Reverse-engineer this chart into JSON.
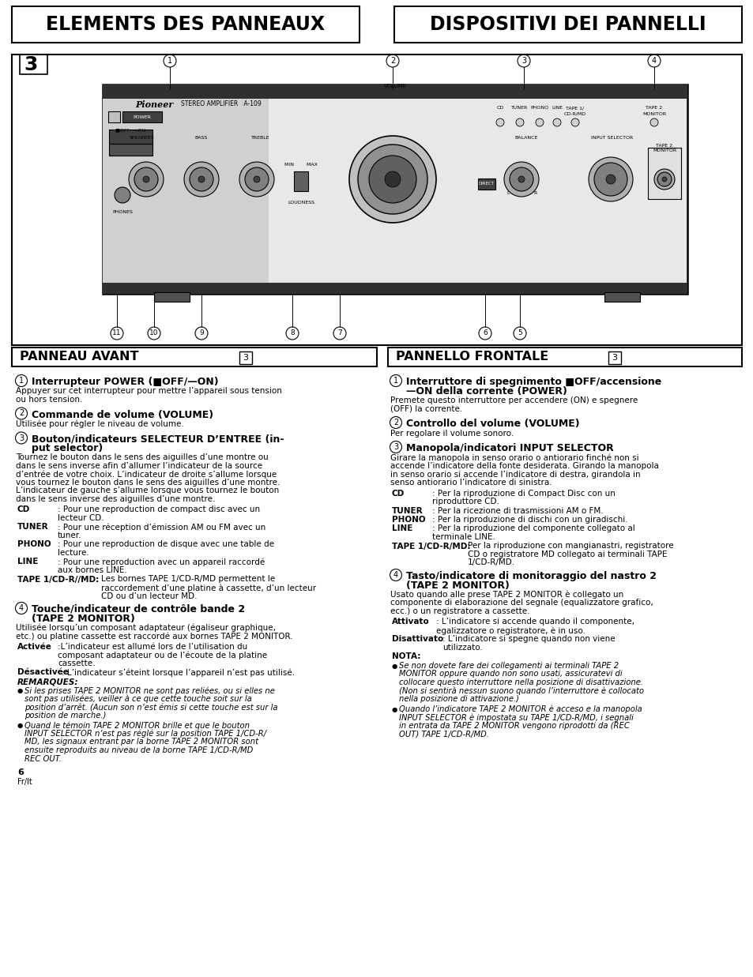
{
  "title_left": "ELEMENTS DES PANNEAUX",
  "title_right": "DISPOSITIVI DEI PANNELLI",
  "section_left": "PANNEAU AVANT",
  "section_right": "PANNELLO FRONTALE",
  "section_num": "3",
  "bg_color": "#ffffff",
  "text_color": "#000000",
  "page_num": "6",
  "page_lang": "Fr/lt",
  "left_col_items": [
    {
      "type": "heading",
      "num": "1",
      "text": "Interrupteur POWER (■OFF/—ON)"
    },
    {
      "type": "body",
      "text": "Appuyer sur cet interrupteur pour mettre l’appareil sous tension\nou hors tension."
    },
    {
      "type": "heading",
      "num": "2",
      "text": "Commande de volume (VOLUME)"
    },
    {
      "type": "body",
      "text": "Utilisée pour régler le niveau de volume."
    },
    {
      "type": "heading2",
      "num": "3",
      "text": "Bouton/indicateurs SELECTEUR D’ENTREE (in-",
      "text2": "put selector)"
    },
    {
      "type": "body",
      "text": "Tournez le bouton dans le sens des aiguilles d’une montre ou\ndans le sens inverse afin d’allumer l’indicateur de la source\nd’entrée de votre choix. L’indicateur de droite s’allume lorsque\nvous tournez le bouton dans le sens des aiguilles d’une montre.\nL’indicateur de gauche s’allume lorsque vous tournez le bouton\ndans le sens inverse des aiguilles d’une montre."
    },
    {
      "type": "label_desc",
      "label": "CD",
      "desc": ": Pour une reproduction de compact disc avec un\nlecteur CD.",
      "indent": 55
    },
    {
      "type": "label_desc",
      "label": "TUNER",
      "desc": ": Pour une réception d’émission AM ou FM avec un\ntuner.",
      "indent": 55
    },
    {
      "type": "label_desc",
      "label": "PHONO",
      "desc": ": Pour une reproduction de disque avec une table de\nlecture.",
      "indent": 55
    },
    {
      "type": "label_desc",
      "label": "LINE",
      "desc": ": Pour une reproduction avec un appareil raccordé\naux bornes LINE.",
      "indent": 55
    },
    {
      "type": "label_desc",
      "label": "TAPE 1/CD-R//MD:",
      "desc": "Les bornes TAPE 1/CD-R/MD permettent le\nraccordement d’une platine à cassette, d’un lecteur\nCD ou d’un lecteur MD.",
      "indent": 110
    },
    {
      "type": "heading2",
      "num": "4",
      "text": "Touche/indicateur de contrôle bande 2",
      "text2": "(TAPE 2 MONITOR)"
    },
    {
      "type": "body",
      "text": "Utilisée lorsqu’un composant adaptateur (égaliseur graphique,\netc.) ou platine cassette est raccordé aux bornes TAPE 2 MONITOR."
    },
    {
      "type": "label_desc",
      "label": "Activée",
      "desc": ":L’indicateur est allumé lors de l’utilisation du\ncomposant adaptateur ou de l’écoute de la platine\ncassette.",
      "indent": 55
    },
    {
      "type": "label_desc_plain",
      "label": "Désactivée",
      "desc": ": L’indicateur s’éteint lorsque l’appareil n’est pas utilisé.",
      "indent": 60
    },
    {
      "type": "bold_italic_label",
      "text": "REMARQUES:"
    },
    {
      "type": "bullet_italic",
      "text": "Si les prises TAPE 2 MONITOR ne sont pas reliées, ou si elles ne\nsont pas utilisées, veiller à ce que cette touche soit sur la\nposition d’arrêt. (Aucun son n’est émis si cette touche est sur la\nposition de marche.)"
    },
    {
      "type": "bullet_italic",
      "text": "Quand le témoin TAPE 2 MONITOR brille et que le bouton\nINPUT SELECTOR n’est pas réglé sur la position TAPE 1/CD-R/\nMD, les signaux entrant par la borne TAPE 2 MONITOR sont\nensuite reproduits au niveau de la borne TAPE 1/CD-R/MD\nREC OUT."
    }
  ],
  "right_col_items": [
    {
      "type": "heading2",
      "num": "1",
      "text": "Interruttore di spegnimento ■OFF/accensione",
      "text2": "—ON della corrente (POWER)"
    },
    {
      "type": "body",
      "text": "Premete questo interruttore per accendere (ON) e spegnere\n(OFF) la corrente."
    },
    {
      "type": "heading",
      "num": "2",
      "text": "Controllo del volume (VOLUME)"
    },
    {
      "type": "body",
      "text": "Per regolare il volume sonoro."
    },
    {
      "type": "heading",
      "num": "3",
      "text": "Manopola/indicatori INPUT SELECTOR"
    },
    {
      "type": "body",
      "text": "Girare la manopola in senso orario o antiorario finché non si\naccende l’indicatore della fonte desiderata. Girando la manopola\nin senso orario si accende l’indicatore di destra, girandola in\nsenso antiorario l’indicatore di sinistra."
    },
    {
      "type": "label_desc",
      "label": "CD",
      "desc": ": Per la riproduzione di Compact Disc con un\nriproduttore CD.",
      "indent": 55
    },
    {
      "type": "label_desc",
      "label": "TUNER",
      "desc": ": Per la ricezione di trasmissioni AM o FM.",
      "indent": 55
    },
    {
      "type": "label_desc",
      "label": "PHONO",
      "desc": ": Per la riproduzione di dischi con un giradischi.",
      "indent": 55
    },
    {
      "type": "label_desc",
      "label": "LINE",
      "desc": ": Per la riproduzione del componente collegato al\nterminale LINE.",
      "indent": 55
    },
    {
      "type": "label_desc",
      "label": "TAPE 1/CD-R/MD:",
      "desc": "Per la riproduzione con mangianastri, registratore\nCD o registratore MD collegato ai terminali TAPE\n1/CD-R/MD.",
      "indent": 100
    },
    {
      "type": "heading2",
      "num": "4",
      "text": "Tasto/indicatore di monitoraggio del nastro 2",
      "text2": "(TAPE 2 MONITOR)"
    },
    {
      "type": "body",
      "text": "Usato quando alle prese TAPE 2 MONITOR è collegato un\ncomponente di elaborazione del segnale (equalizzatore grafico,\necc.) o un registratore a cassette."
    },
    {
      "type": "label_desc",
      "label": "Attivato",
      "desc": ": L’indicatore si accende quando il componente,\negalizzatore o registratore, è in uso.",
      "indent": 60
    },
    {
      "type": "label_desc_plain",
      "label": "Disattivato",
      "desc": ": L’indicatore si spegne quando non viene\nutilizzato.",
      "indent": 68
    },
    {
      "type": "bold_label",
      "text": "NOTA:"
    },
    {
      "type": "bullet_italic",
      "text": "Se non dovete fare dei collegamenti ai terminali TAPE 2\nMONITOR oppure quando non sono usati, assicuratevi di\ncollocare questo interruttore nella posizione di disattivazione.\n(Non si sentirà nessun suono quando l’interruttore è collocato\nnella posizione di attivazione.)"
    },
    {
      "type": "bullet_italic",
      "text": "Quando l’indicatore TAPE 2 MONITOR è acceso e la manopola\nINPUT SELECTOR è impostata su TAPE 1/CD-R/MD, i segnali\nin entrata da TAPE 2 MONITOR vengono riprodotti da (REC\nOUT) TAPE 1/CD-R/MD."
    }
  ]
}
